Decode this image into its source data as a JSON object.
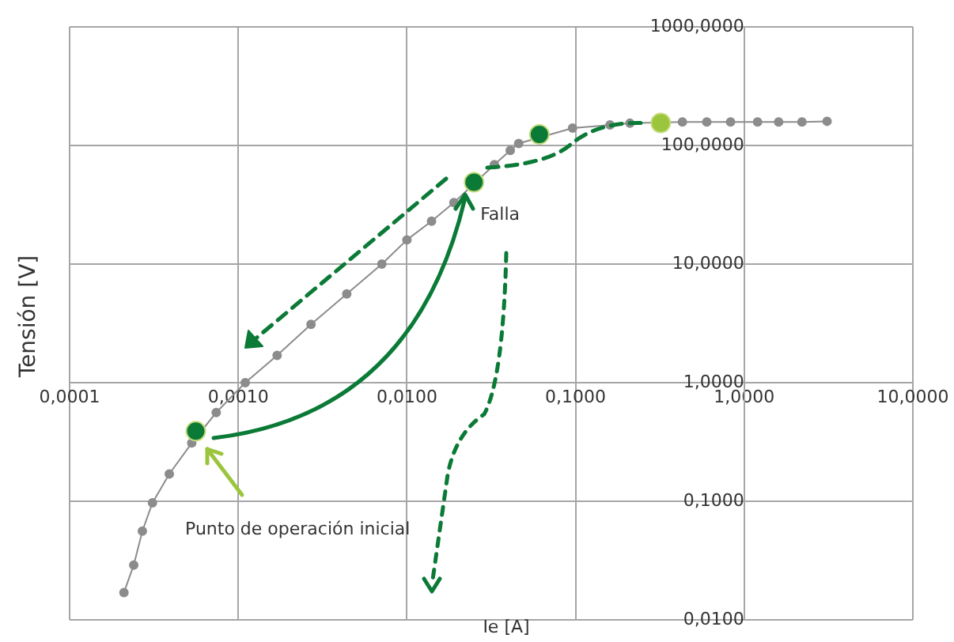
{
  "chart_data": {
    "type": "line",
    "xlabel": "Ie [A]",
    "ylabel": "Tensión [V]",
    "log": "xy",
    "grid": true,
    "legend": false,
    "marker": "circle",
    "xlim": [
      0.0001,
      10
    ],
    "ylim": [
      0.01,
      1000
    ],
    "xticks": [
      {
        "value": 0.0001,
        "label": "0,0001"
      },
      {
        "value": 0.001,
        "label": "0,0010"
      },
      {
        "value": 0.01,
        "label": "0,0100"
      },
      {
        "value": 0.1,
        "label": "0,1000"
      },
      {
        "value": 1,
        "label": "1,0000"
      },
      {
        "value": 10,
        "label": "10,0000"
      }
    ],
    "yticks": [
      {
        "value": 0.01,
        "label": "0,0100"
      },
      {
        "value": 0.1,
        "label": "0,1000"
      },
      {
        "value": 1,
        "label": "1,0000"
      },
      {
        "value": 10,
        "label": "10,0000"
      },
      {
        "value": 100,
        "label": "100,0000"
      },
      {
        "value": 1000,
        "label": "1000,0000"
      }
    ],
    "series": [
      {
        "color": "#8c8c8c",
        "x": [
          0.00021,
          0.00024,
          0.00027,
          0.00031,
          0.00039,
          0.00053,
          0.00074,
          0.0011,
          0.0017,
          0.0027,
          0.0044,
          0.0071,
          0.01,
          0.014,
          0.019,
          0.033,
          0.041,
          0.046,
          0.096,
          0.16,
          0.21,
          0.43,
          0.6,
          0.83,
          1.2,
          1.6,
          2.2,
          3.1
        ],
        "values": [
          0.017,
          0.029,
          0.056,
          0.097,
          0.17,
          0.31,
          0.56,
          1.0,
          1.7,
          3.1,
          5.6,
          10,
          16,
          23,
          33,
          69,
          91,
          104,
          140,
          149,
          154,
          158,
          158,
          158,
          158,
          158,
          158,
          160
        ]
      },
      {
        "type": "scatter",
        "color": "#0a7a36",
        "x": [
          0.00056,
          0.025
        ],
        "values": [
          0.39,
          49
        ]
      },
      {
        "type": "scatter",
        "color": "#0a7a36",
        "x": [
          0.061
        ],
        "values": [
          124
        ]
      },
      {
        "type": "scatter",
        "color": "#9bc53d",
        "x": [
          0.32
        ],
        "values": [
          155
        ]
      }
    ],
    "annotations": [
      {
        "text": "Falla",
        "x": 0.025,
        "y": 49
      },
      "Punto de operación inicial"
    ]
  }
}
